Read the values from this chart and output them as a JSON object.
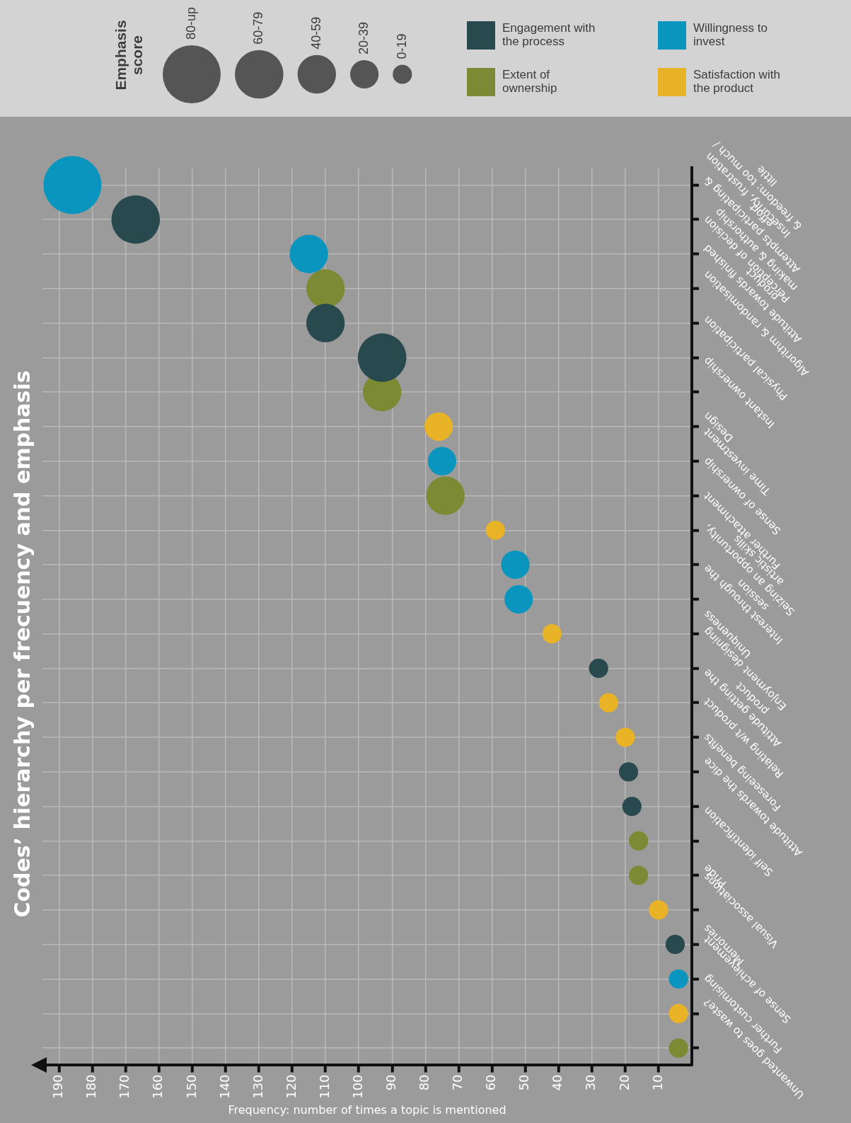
{
  "chart_data": {
    "type": "bubble",
    "orientation": "horizontal",
    "title": "Codes’ hierarchy per frecuency and emphasis",
    "xlabel": "Frequency: number of times a topic is mentioned",
    "legend_title": "Emphasis score",
    "categories": [
      "Insecurity, frustration & freedom: too much / little",
      "Attempts participating & effort",
      "Perception of decision making & authorship",
      "Attitude towards finished product",
      "Algorithm & randomisation",
      "Physical participation",
      "Instant ownership",
      "Design",
      "Time investment",
      "Sense of ownership",
      "Further attachment",
      "Seizing an opportunity, artistic skills",
      "Interest through the session",
      "Uniqueness",
      "Enjoyment designing",
      "Attitude getting the product",
      "Relating w/t product",
      "Foreseeing benefits",
      "Attitude towards the dice",
      "Self identification",
      "Pride",
      "Visual associations",
      "Memories",
      "Sense of achievement",
      "Further customising",
      "Unwanted goes to waste?"
    ],
    "series": [
      {
        "name": "Engagement with the process",
        "color": "#284a4e",
        "values": [
          null,
          167,
          null,
          null,
          110,
          93,
          null,
          null,
          null,
          null,
          null,
          null,
          null,
          null,
          28,
          null,
          null,
          19,
          18,
          null,
          null,
          null,
          5,
          null,
          null,
          null
        ],
        "sizes": [
          null,
          0.7,
          null,
          null,
          0.44,
          0.7,
          null,
          null,
          null,
          null,
          null,
          null,
          null,
          null,
          0.11,
          null,
          null,
          0.11,
          0.11,
          null,
          null,
          null,
          0.11,
          null,
          null,
          null
        ]
      },
      {
        "name": "Willingness to invest",
        "color": "#0a95bf",
        "values": [
          186,
          null,
          115,
          null,
          null,
          null,
          null,
          null,
          75,
          null,
          null,
          53,
          52,
          null,
          null,
          null,
          null,
          null,
          null,
          null,
          null,
          null,
          null,
          4,
          null,
          null
        ],
        "sizes": [
          1,
          null,
          0.44,
          null,
          null,
          null,
          null,
          null,
          0.24,
          null,
          null,
          0.24,
          0.24,
          null,
          null,
          null,
          null,
          null,
          null,
          null,
          null,
          null,
          null,
          0.11,
          null,
          null
        ]
      },
      {
        "name": "Extent of ownership",
        "color": "#7b8a33",
        "values": [
          null,
          null,
          null,
          110,
          null,
          null,
          93,
          null,
          null,
          74,
          null,
          null,
          null,
          null,
          null,
          null,
          null,
          null,
          null,
          16,
          16,
          null,
          null,
          null,
          null,
          4
        ],
        "sizes": [
          null,
          null,
          null,
          0.44,
          null,
          null,
          0.44,
          null,
          null,
          0.44,
          null,
          null,
          null,
          null,
          null,
          null,
          null,
          null,
          null,
          0.11,
          0.11,
          null,
          null,
          null,
          null,
          0.11
        ]
      },
      {
        "name": "Satisfaction with the product",
        "color": "#e9b327",
        "values": [
          null,
          null,
          null,
          null,
          null,
          null,
          null,
          76,
          null,
          null,
          59,
          null,
          null,
          42,
          null,
          25,
          20,
          null,
          null,
          null,
          null,
          10,
          null,
          null,
          4,
          null
        ],
        "sizes": [
          null,
          null,
          null,
          null,
          null,
          null,
          null,
          0.24,
          null,
          null,
          0.11,
          null,
          null,
          0.11,
          null,
          0.11,
          0.11,
          null,
          null,
          null,
          null,
          0.11,
          null,
          null,
          0.11,
          null
        ]
      }
    ],
    "size_legend": [
      {
        "value": 1,
        "label": "80-up"
      },
      {
        "value": 0.7,
        "label": "60-79"
      },
      {
        "value": 0.44,
        "label": "40-59"
      },
      {
        "value": 0.24,
        "label": "20-39"
      },
      {
        "value": 0.11,
        "label": "0-19"
      }
    ],
    "xlim": [
      195,
      0
    ],
    "xticks": [
      190,
      180,
      170,
      160,
      150,
      140,
      130,
      120,
      110,
      100,
      90,
      80,
      70,
      60,
      50,
      40,
      30,
      20,
      10
    ],
    "grid": true,
    "legend": "top"
  }
}
